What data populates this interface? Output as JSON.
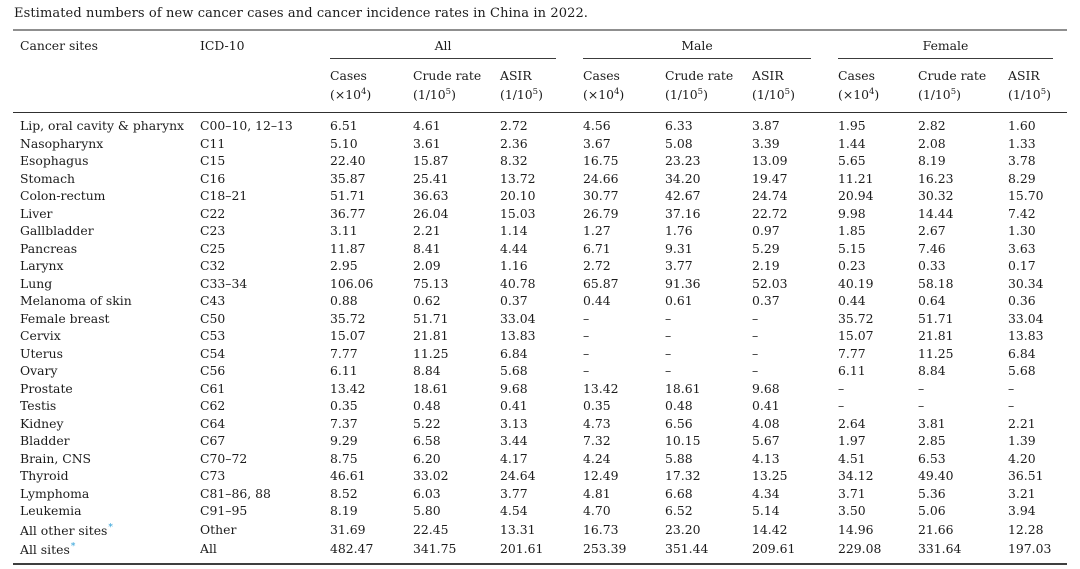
{
  "title": "Estimated numbers of new cancer cases and cancer incidence rates in China in 2022.",
  "accent_colors": {
    "footnote_asterisk": "#2b9fd8",
    "rule_outer": "#8f8f8f",
    "rule_inner": "#303030"
  },
  "table": {
    "site_header": "Cancer sites",
    "icd_header": "ICD-10",
    "groups": [
      {
        "label": "All"
      },
      {
        "label": "Male"
      },
      {
        "label": "Female"
      }
    ],
    "metric_headers": [
      {
        "name": "Cases",
        "unit_base": "(×10",
        "unit_sup": "4",
        "unit_end": ")"
      },
      {
        "name": "Crude rate",
        "unit_base": "(1/10",
        "unit_sup": "5",
        "unit_end": ")"
      },
      {
        "name": "ASIR",
        "unit_base": "(1/10",
        "unit_sup": "5",
        "unit_end": ")"
      }
    ],
    "rows": [
      {
        "site": "Lip, oral cavity & pharynx",
        "asterisk": false,
        "icd": "C00–10, 12–13",
        "values": [
          "6.51",
          "4.61",
          "2.72",
          "4.56",
          "6.33",
          "3.87",
          "1.95",
          "2.82",
          "1.60"
        ]
      },
      {
        "site": "Nasopharynx",
        "asterisk": false,
        "icd": "C11",
        "values": [
          "5.10",
          "3.61",
          "2.36",
          "3.67",
          "5.08",
          "3.39",
          "1.44",
          "2.08",
          "1.33"
        ]
      },
      {
        "site": "Esophagus",
        "asterisk": false,
        "icd": "C15",
        "values": [
          "22.40",
          "15.87",
          "8.32",
          "16.75",
          "23.23",
          "13.09",
          "5.65",
          "8.19",
          "3.78"
        ]
      },
      {
        "site": "Stomach",
        "asterisk": false,
        "icd": "C16",
        "values": [
          "35.87",
          "25.41",
          "13.72",
          "24.66",
          "34.20",
          "19.47",
          "11.21",
          "16.23",
          "8.29"
        ]
      },
      {
        "site": "Colon-rectum",
        "asterisk": false,
        "icd": "C18–21",
        "values": [
          "51.71",
          "36.63",
          "20.10",
          "30.77",
          "42.67",
          "24.74",
          "20.94",
          "30.32",
          "15.70"
        ]
      },
      {
        "site": "Liver",
        "asterisk": false,
        "icd": "C22",
        "values": [
          "36.77",
          "26.04",
          "15.03",
          "26.79",
          "37.16",
          "22.72",
          "9.98",
          "14.44",
          "7.42"
        ]
      },
      {
        "site": "Gallbladder",
        "asterisk": false,
        "icd": "C23",
        "values": [
          "3.11",
          "2.21",
          "1.14",
          "1.27",
          "1.76",
          "0.97",
          "1.85",
          "2.67",
          "1.30"
        ]
      },
      {
        "site": "Pancreas",
        "asterisk": false,
        "icd": "C25",
        "values": [
          "11.87",
          "8.41",
          "4.44",
          "6.71",
          "9.31",
          "5.29",
          "5.15",
          "7.46",
          "3.63"
        ]
      },
      {
        "site": "Larynx",
        "asterisk": false,
        "icd": "C32",
        "values": [
          "2.95",
          "2.09",
          "1.16",
          "2.72",
          "3.77",
          "2.19",
          "0.23",
          "0.33",
          "0.17"
        ]
      },
      {
        "site": "Lung",
        "asterisk": false,
        "icd": "C33–34",
        "values": [
          "106.06",
          "75.13",
          "40.78",
          "65.87",
          "91.36",
          "52.03",
          "40.19",
          "58.18",
          "30.34"
        ]
      },
      {
        "site": "Melanoma of skin",
        "asterisk": false,
        "icd": "C43",
        "values": [
          "0.88",
          "0.62",
          "0.37",
          "0.44",
          "0.61",
          "0.37",
          "0.44",
          "0.64",
          "0.36"
        ]
      },
      {
        "site": "Female breast",
        "asterisk": false,
        "icd": "C50",
        "values": [
          "35.72",
          "51.71",
          "33.04",
          "–",
          "–",
          "–",
          "35.72",
          "51.71",
          "33.04"
        ]
      },
      {
        "site": "Cervix",
        "asterisk": false,
        "icd": "C53",
        "values": [
          "15.07",
          "21.81",
          "13.83",
          "–",
          "–",
          "–",
          "15.07",
          "21.81",
          "13.83"
        ]
      },
      {
        "site": "Uterus",
        "asterisk": false,
        "icd": "C54",
        "values": [
          "7.77",
          "11.25",
          "6.84",
          "–",
          "–",
          "–",
          "7.77",
          "11.25",
          "6.84"
        ]
      },
      {
        "site": "Ovary",
        "asterisk": false,
        "icd": "C56",
        "values": [
          "6.11",
          "8.84",
          "5.68",
          "–",
          "–",
          "–",
          "6.11",
          "8.84",
          "5.68"
        ]
      },
      {
        "site": "Prostate",
        "asterisk": false,
        "icd": "C61",
        "values": [
          "13.42",
          "18.61",
          "9.68",
          "13.42",
          "18.61",
          "9.68",
          "–",
          "–",
          "–"
        ]
      },
      {
        "site": "Testis",
        "asterisk": false,
        "icd": "C62",
        "values": [
          "0.35",
          "0.48",
          "0.41",
          "0.35",
          "0.48",
          "0.41",
          "–",
          "–",
          "–"
        ]
      },
      {
        "site": "Kidney",
        "asterisk": false,
        "icd": "C64",
        "values": [
          "7.37",
          "5.22",
          "3.13",
          "4.73",
          "6.56",
          "4.08",
          "2.64",
          "3.81",
          "2.21"
        ]
      },
      {
        "site": "Bladder",
        "asterisk": false,
        "icd": "C67",
        "values": [
          "9.29",
          "6.58",
          "3.44",
          "7.32",
          "10.15",
          "5.67",
          "1.97",
          "2.85",
          "1.39"
        ]
      },
      {
        "site": "Brain, CNS",
        "asterisk": false,
        "icd": "C70–72",
        "values": [
          "8.75",
          "6.20",
          "4.17",
          "4.24",
          "5.88",
          "4.13",
          "4.51",
          "6.53",
          "4.20"
        ]
      },
      {
        "site": "Thyroid",
        "asterisk": false,
        "icd": "C73",
        "values": [
          "46.61",
          "33.02",
          "24.64",
          "12.49",
          "17.32",
          "13.25",
          "34.12",
          "49.40",
          "36.51"
        ]
      },
      {
        "site": "Lymphoma",
        "asterisk": false,
        "icd": "C81–86, 88",
        "values": [
          "8.52",
          "6.03",
          "3.77",
          "4.81",
          "6.68",
          "4.34",
          "3.71",
          "5.36",
          "3.21"
        ]
      },
      {
        "site": "Leukemia",
        "asterisk": false,
        "icd": "C91–95",
        "values": [
          "8.19",
          "5.80",
          "4.54",
          "4.70",
          "6.52",
          "5.14",
          "3.50",
          "5.06",
          "3.94"
        ]
      },
      {
        "site": "All other sites",
        "asterisk": true,
        "icd": "Other",
        "values": [
          "31.69",
          "22.45",
          "13.31",
          "16.73",
          "23.20",
          "14.42",
          "14.96",
          "21.66",
          "12.28"
        ]
      },
      {
        "site": "All sites",
        "asterisk": true,
        "icd": "All",
        "values": [
          "482.47",
          "341.75",
          "201.61",
          "253.39",
          "351.44",
          "209.61",
          "229.08",
          "331.64",
          "197.03"
        ]
      }
    ]
  }
}
